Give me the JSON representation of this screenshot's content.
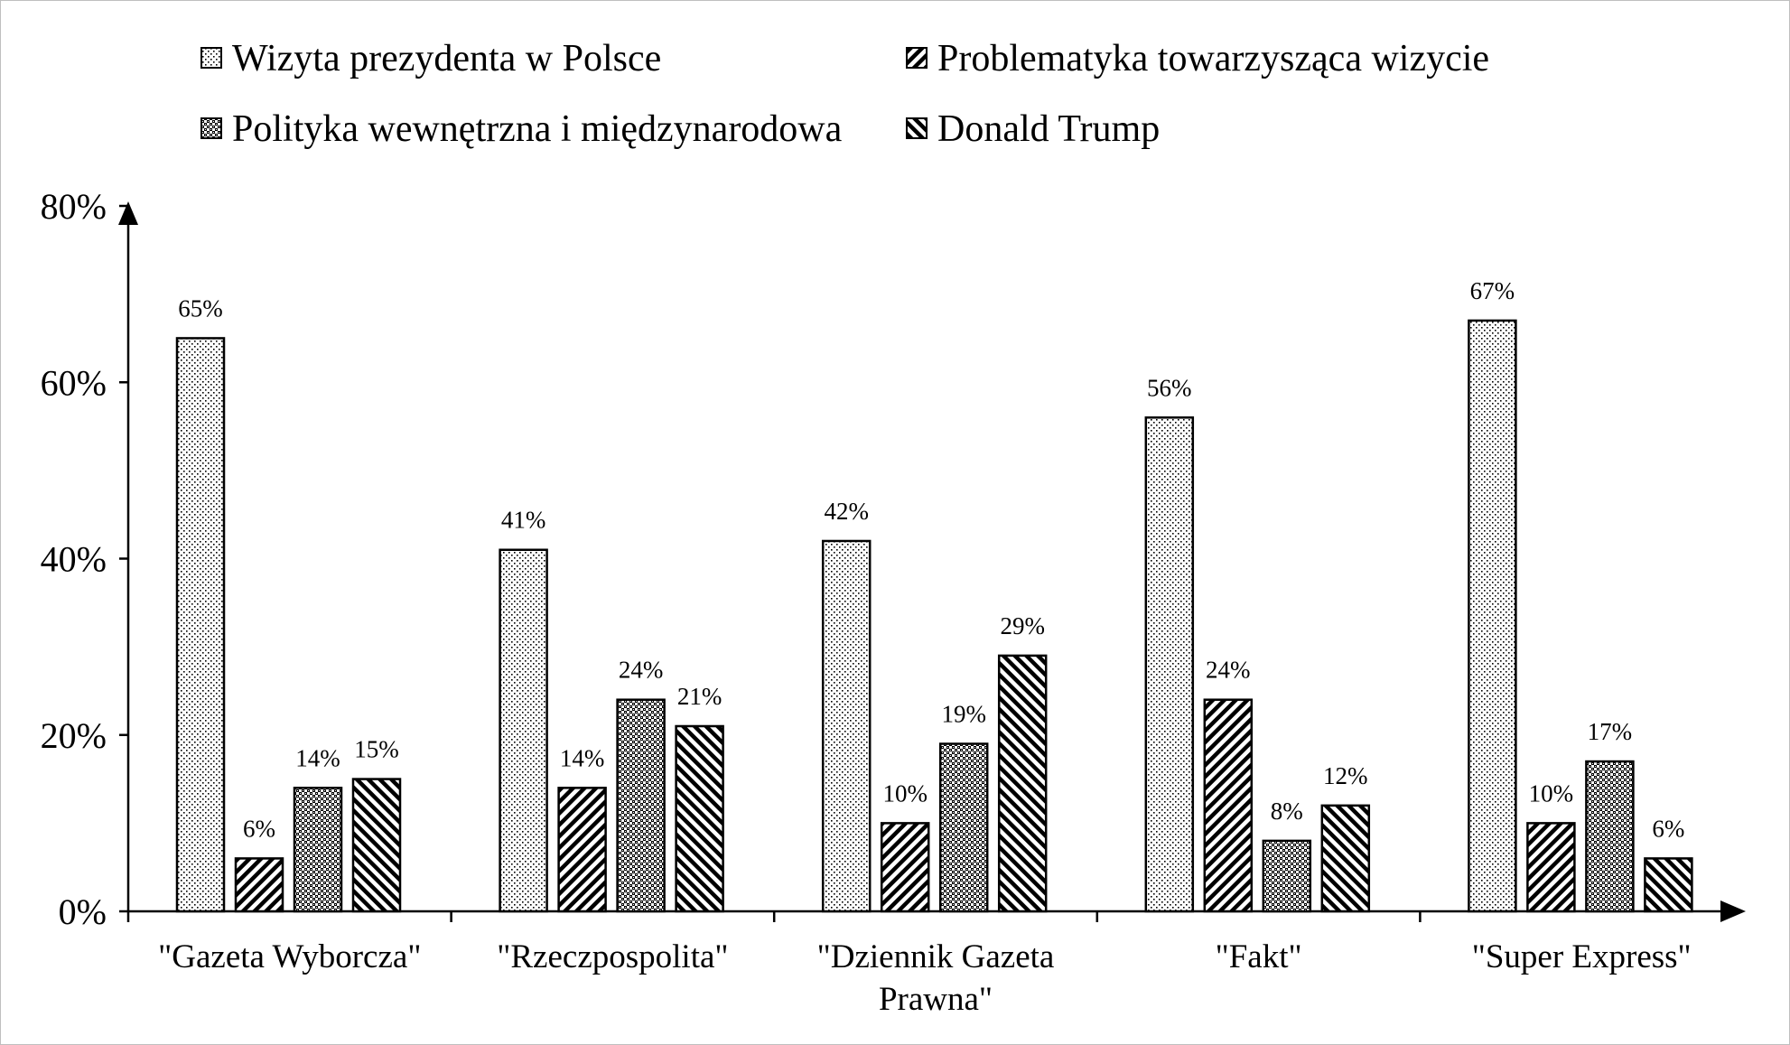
{
  "chart_data": {
    "type": "bar",
    "categories": [
      "\"Gazeta Wyborcza\"",
      "\"Rzeczpospolita\"",
      "\"Dziennik Gazeta Prawna\"",
      "\"Fakt\"",
      "\"Super Express\""
    ],
    "category_lines": [
      [
        "\"Gazeta Wyborcza\""
      ],
      [
        "\"Rzeczpospolita\""
      ],
      [
        "\"Dziennik Gazeta",
        "Prawna\""
      ],
      [
        "\"Fakt\""
      ],
      [
        "\"Super Express\""
      ]
    ],
    "series": [
      {
        "name": "Wizyta prezydenta w Polsce",
        "values": [
          65,
          41,
          42,
          56,
          67
        ],
        "pattern": "dots"
      },
      {
        "name": "Problematyka towarzysząca wizycie",
        "values": [
          6,
          14,
          10,
          24,
          10
        ],
        "pattern": "diag-down"
      },
      {
        "name": "Polityka wewnętrzna i międzynarodowa",
        "values": [
          14,
          24,
          19,
          8,
          17
        ],
        "pattern": "checker"
      },
      {
        "name": "Donald Trump",
        "values": [
          15,
          21,
          29,
          12,
          6
        ],
        "pattern": "diag-up"
      }
    ],
    "data_labels": [
      [
        "65%",
        "41%",
        "42%",
        "56%",
        "67%"
      ],
      [
        "6%",
        "14%",
        "10%",
        "24%",
        "10%"
      ],
      [
        "14%",
        "24%",
        "19%",
        "8%",
        "17%"
      ],
      [
        "15%",
        "21%",
        "29%",
        "12%",
        "6%"
      ]
    ],
    "y_ticks": [
      0,
      20,
      40,
      60,
      80
    ],
    "y_tick_labels": [
      "0%",
      "20%",
      "40%",
      "60%",
      "80%"
    ],
    "ylim": [
      0,
      80
    ],
    "title": "",
    "xlabel": "",
    "ylabel": "",
    "grid": false,
    "legend_position": "top",
    "colors": {
      "bar_stroke": "#000000",
      "pattern_ink": "#000000",
      "background": "#ffffff"
    }
  }
}
